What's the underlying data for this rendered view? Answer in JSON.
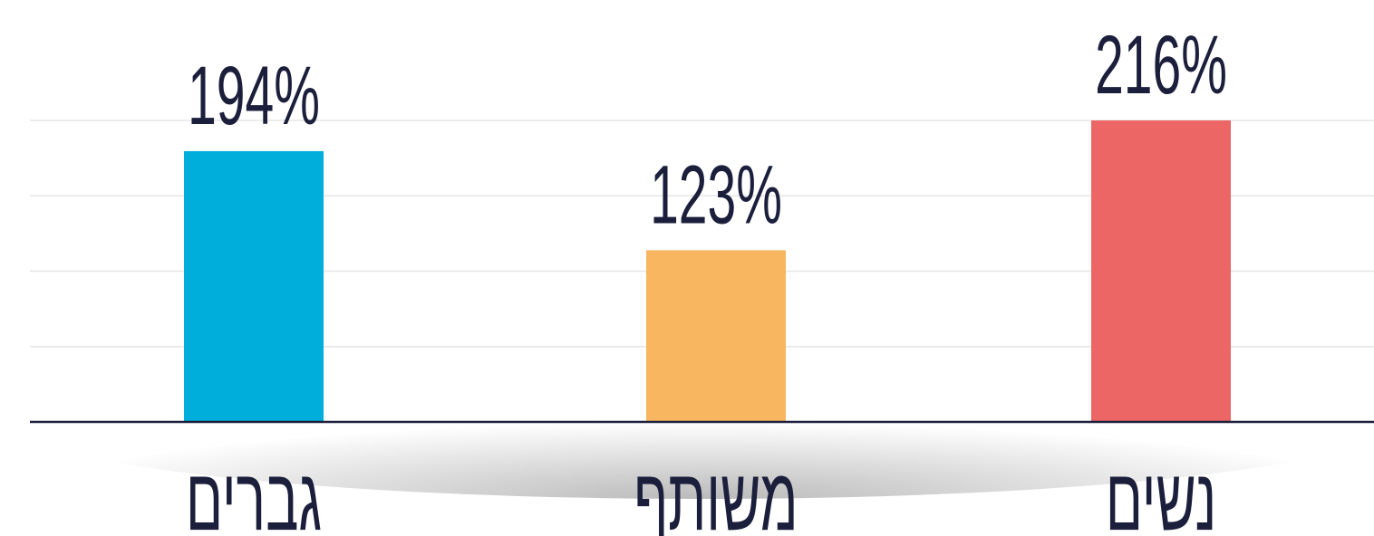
{
  "chart_data": {
    "type": "bar",
    "categories": [
      "גברים",
      "משותף",
      "נשים"
    ],
    "values": [
      194,
      123,
      216
    ],
    "value_labels": [
      "194%",
      "123%",
      "216%"
    ],
    "colors": [
      "#00aedb",
      "#f9b661",
      "#eb6664"
    ],
    "ylim": [
      0,
      216
    ],
    "grid": true
  }
}
